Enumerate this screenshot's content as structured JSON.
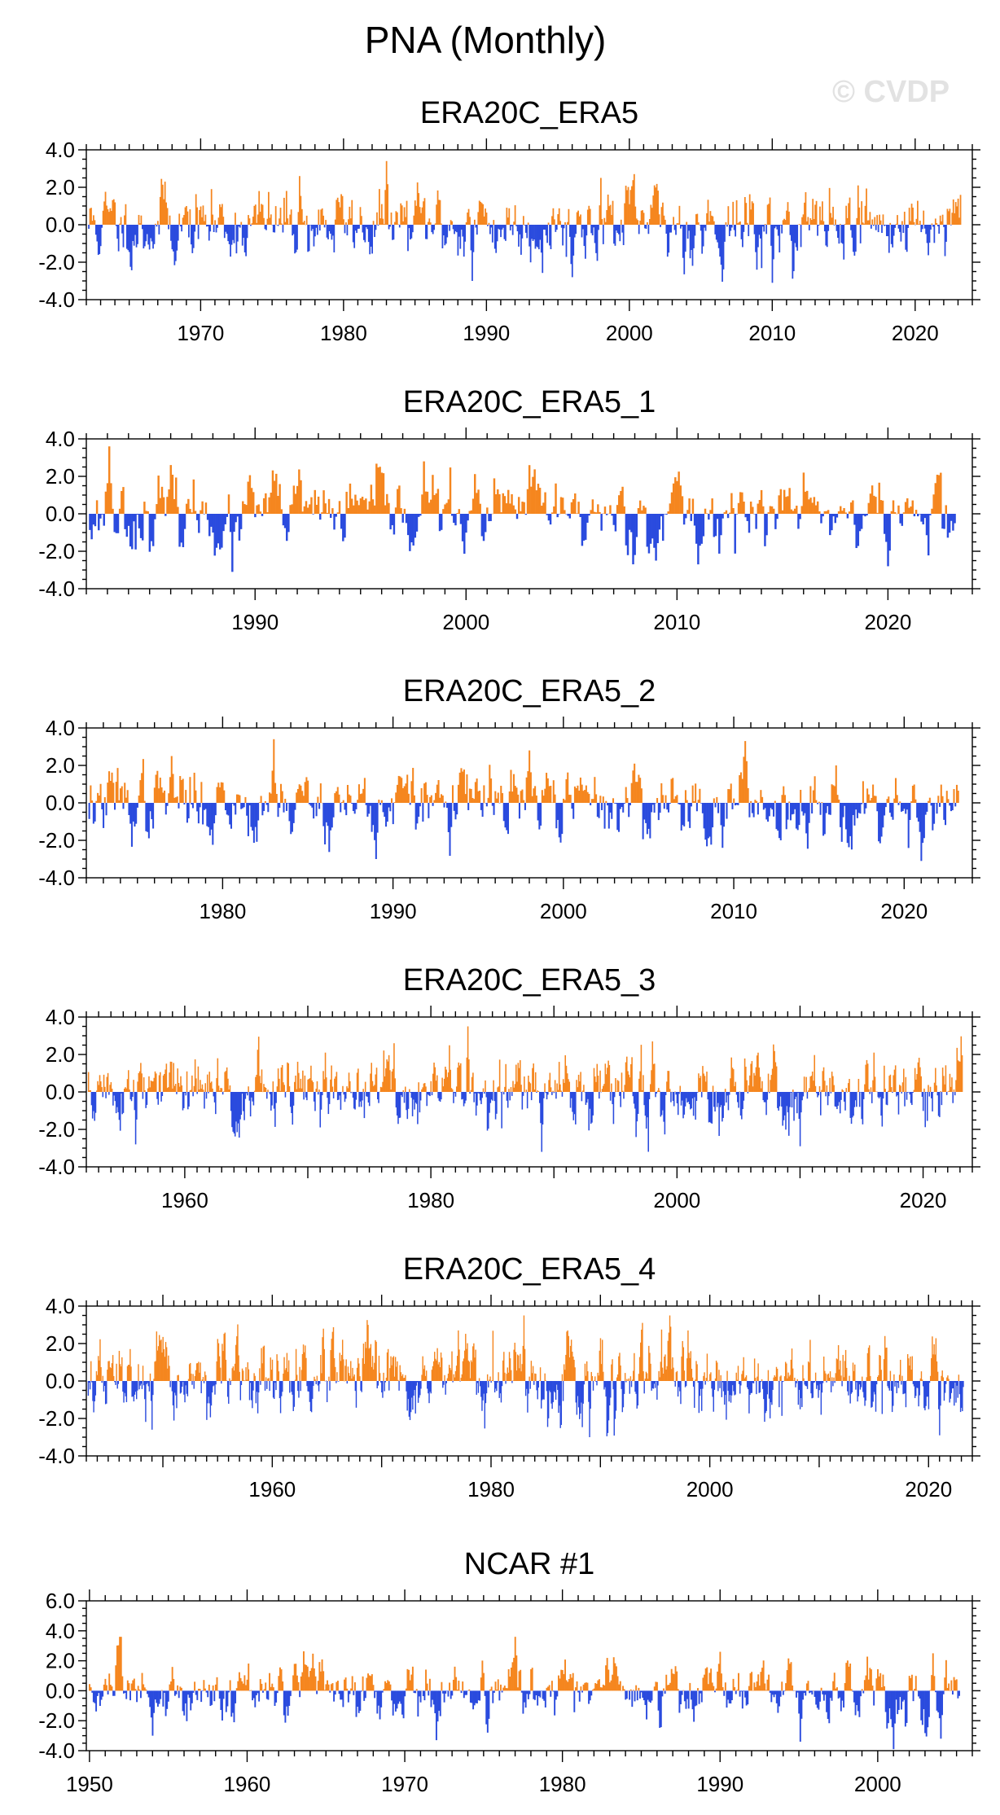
{
  "title": "PNA (Monthly)",
  "watermark": "© CVDP",
  "colors": {
    "positive": "#f5861f",
    "negative": "#2a4bde",
    "axis": "#000000"
  },
  "chart_data": [
    {
      "type": "bar",
      "title": "ERA20C_ERA5",
      "x_range": [
        1962.0,
        2024.0
      ],
      "ylim": [
        -4,
        4
      ],
      "y_ticks": [
        "4.0",
        "2.0",
        "0.0",
        "-2.0",
        "-4.0"
      ],
      "y_tick_values": [
        4,
        2,
        0,
        -2,
        -4
      ],
      "x_ticks": [
        "1970",
        "1980",
        "1990",
        "2000",
        "2010",
        "2020"
      ],
      "x_tick_values": [
        1970,
        1980,
        1990,
        2000,
        2010,
        2020
      ],
      "seed": 11,
      "y_max_shown": 3.4,
      "y_min_shown": -3.1,
      "events": [
        [
          1983.0,
          3.4
        ],
        [
          1989.0,
          -3.0
        ],
        [
          1976.9,
          2.6
        ],
        [
          1998.0,
          2.5
        ],
        [
          2016.0,
          2.1
        ],
        [
          2010.0,
          -3.1
        ],
        [
          2008.9,
          -2.4
        ],
        [
          1967.5,
          2.3
        ],
        [
          1996.0,
          -2.8
        ]
      ]
    },
    {
      "type": "bar",
      "title": "ERA20C_ERA5_1",
      "x_range": [
        1982.0,
        2024.0
      ],
      "ylim": [
        -4,
        4
      ],
      "y_ticks": [
        "4.0",
        "2.0",
        "0.0",
        "-2.0",
        "-4.0"
      ],
      "y_tick_values": [
        4,
        2,
        0,
        -2,
        -4
      ],
      "x_ticks": [
        "1990",
        "2000",
        "2010",
        "2020"
      ],
      "x_tick_values": [
        1990,
        2000,
        2010,
        2020
      ],
      "seed": 23,
      "y_max_shown": 3.6,
      "y_min_shown": -3.1,
      "events": [
        [
          1983.1,
          3.6
        ],
        [
          1988.9,
          -3.1
        ],
        [
          1998.0,
          2.8
        ],
        [
          2016.0,
          2.2
        ],
        [
          2009.0,
          -2.5
        ],
        [
          2020.0,
          -2.8
        ],
        [
          2003.0,
          2.6
        ],
        [
          2011.0,
          -2.7
        ]
      ]
    },
    {
      "type": "bar",
      "title": "ERA20C_ERA5_2",
      "x_range": [
        1972.0,
        2024.0
      ],
      "ylim": [
        -4,
        4
      ],
      "y_ticks": [
        "4.0",
        "2.0",
        "0.0",
        "-2.0",
        "-4.0"
      ],
      "y_tick_values": [
        4,
        2,
        0,
        -2,
        -4
      ],
      "x_ticks": [
        "1980",
        "1990",
        "2000",
        "2010",
        "2020"
      ],
      "x_tick_values": [
        1980,
        1990,
        2000,
        2010,
        2020
      ],
      "seed": 37,
      "y_max_shown": 3.4,
      "y_min_shown": -3.1,
      "events": [
        [
          1983.0,
          3.4
        ],
        [
          1989.0,
          -3.0
        ],
        [
          1998.0,
          2.8
        ],
        [
          2016.0,
          2.0
        ],
        [
          2009.3,
          -2.4
        ],
        [
          1977.0,
          2.5
        ],
        [
          2021.0,
          -3.1
        ]
      ]
    },
    {
      "type": "bar",
      "title": "ERA20C_ERA5_3",
      "x_range": [
        1952.0,
        2024.0
      ],
      "ylim": [
        -4,
        4
      ],
      "y_ticks": [
        "4.0",
        "2.0",
        "0.0",
        "-2.0",
        "-4.0"
      ],
      "y_tick_values": [
        4,
        2,
        0,
        -2,
        -4
      ],
      "x_ticks": [
        "1960",
        "1980",
        "2000",
        "2020"
      ],
      "x_tick_values": [
        1960,
        1980,
        2000,
        2020
      ],
      "seed": 51,
      "y_max_shown": 3.5,
      "y_min_shown": -3.3,
      "events": [
        [
          1983.0,
          3.5
        ],
        [
          1989.0,
          -3.2
        ],
        [
          1977.0,
          2.6
        ],
        [
          1998.0,
          2.7
        ],
        [
          2016.0,
          2.1
        ],
        [
          1956.0,
          -2.8
        ],
        [
          2010.0,
          -2.9
        ]
      ]
    },
    {
      "type": "bar",
      "title": "ERA20C_ERA5_4",
      "x_range": [
        1943.0,
        2024.0
      ],
      "ylim": [
        -4,
        4
      ],
      "y_ticks": [
        "4.0",
        "2.0",
        "0.0",
        "-2.0",
        "-4.0"
      ],
      "y_tick_values": [
        4,
        2,
        0,
        -2,
        -4
      ],
      "x_ticks": [
        "1960",
        "1980",
        "2000",
        "2020"
      ],
      "x_tick_values": [
        1960,
        1980,
        2000,
        2020
      ],
      "seed": 67,
      "y_max_shown": 3.5,
      "y_min_shown": -3.0,
      "events": [
        [
          1983.0,
          3.5
        ],
        [
          1989.0,
          -3.0
        ],
        [
          1977.0,
          2.7
        ],
        [
          1998.0,
          2.7
        ],
        [
          2016.0,
          2.4
        ],
        [
          1949.0,
          -2.6
        ],
        [
          2021.0,
          -2.9
        ]
      ]
    },
    {
      "type": "bar",
      "title": "NCAR #1",
      "x_range": [
        1949.8,
        2006.0
      ],
      "ylim": [
        -4,
        6
      ],
      "y_ticks": [
        "6.0",
        "4.0",
        "2.0",
        "0.0",
        "-2.0",
        "-4.0"
      ],
      "y_tick_values": [
        6,
        4,
        2,
        0,
        -2,
        -4
      ],
      "x_ticks": [
        "1950",
        "1960",
        "1970",
        "1980",
        "1990",
        "2000"
      ],
      "x_tick_values": [
        1950,
        1960,
        1970,
        1980,
        1990,
        2000
      ],
      "seed": 83,
      "y_max_shown": 3.6,
      "y_min_shown": -3.9,
      "events": [
        [
          1977.0,
          3.6
        ],
        [
          1995.1,
          -3.4
        ],
        [
          2001.0,
          -3.9
        ],
        [
          1954.0,
          -3.0
        ],
        [
          1990.0,
          2.6
        ],
        [
          2003.5,
          2.5
        ],
        [
          2004.0,
          -3.2
        ],
        [
          1972.0,
          -3.3
        ]
      ]
    }
  ]
}
